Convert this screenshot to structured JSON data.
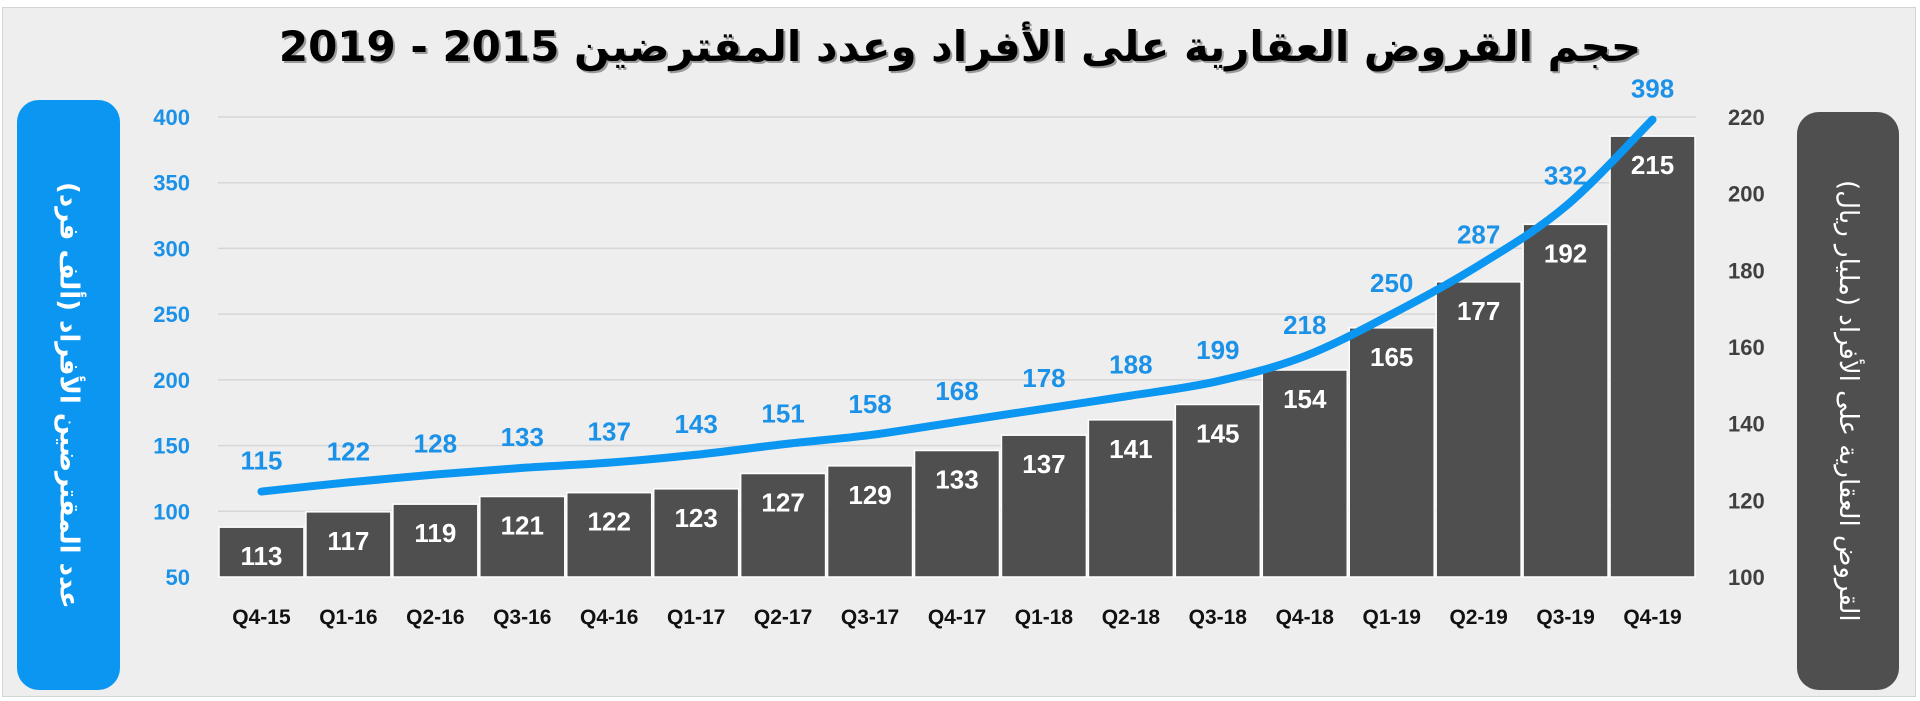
{
  "chart_data": {
    "type": "bar+line",
    "title": "حجم القروض العقارية على الأفراد وعدد المقترضين 2015 - 2019",
    "categories": [
      "Q4-15",
      "Q1-16",
      "Q2-16",
      "Q3-16",
      "Q4-16",
      "Q1-17",
      "Q2-17",
      "Q3-17",
      "Q4-17",
      "Q1-18",
      "Q2-18",
      "Q3-18",
      "Q4-18",
      "Q1-19",
      "Q2-19",
      "Q3-19",
      "Q4-19"
    ],
    "series": [
      {
        "name": "القروض العقارية على الأفراد (مليار ريال)",
        "type": "bar",
        "axis": "right",
        "color": "#4f4f4f",
        "values": [
          113,
          117,
          119,
          121,
          122,
          123,
          127,
          129,
          133,
          137,
          141,
          145,
          154,
          165,
          177,
          192,
          215
        ]
      },
      {
        "name": "عدد المقترضين الأفراد (ألف فرد)",
        "type": "line",
        "axis": "left",
        "color": "#0b96f1",
        "values": [
          115,
          122,
          128,
          133,
          137,
          143,
          151,
          158,
          168,
          178,
          188,
          199,
          218,
          250,
          287,
          332,
          398
        ]
      }
    ],
    "ylabel_left": "عدد المقترضين الأفراد (ألف فرد)",
    "ylabel_right": "القروض العقارية على الأفراد (مليار ريال)",
    "ylim_left": [
      50,
      400
    ],
    "yticks_left": [
      50,
      100,
      150,
      200,
      250,
      300,
      350,
      400
    ],
    "ylim_right": [
      100,
      220
    ],
    "yticks_right": [
      100,
      120,
      140,
      160,
      180,
      200,
      220
    ],
    "grid": true,
    "legend": "none"
  },
  "colors": {
    "background": "#eeeeee",
    "bar": "#4f4f4f",
    "line": "#0b96f1",
    "left_axis": "#1b92e8",
    "right_axis": "#404040"
  }
}
